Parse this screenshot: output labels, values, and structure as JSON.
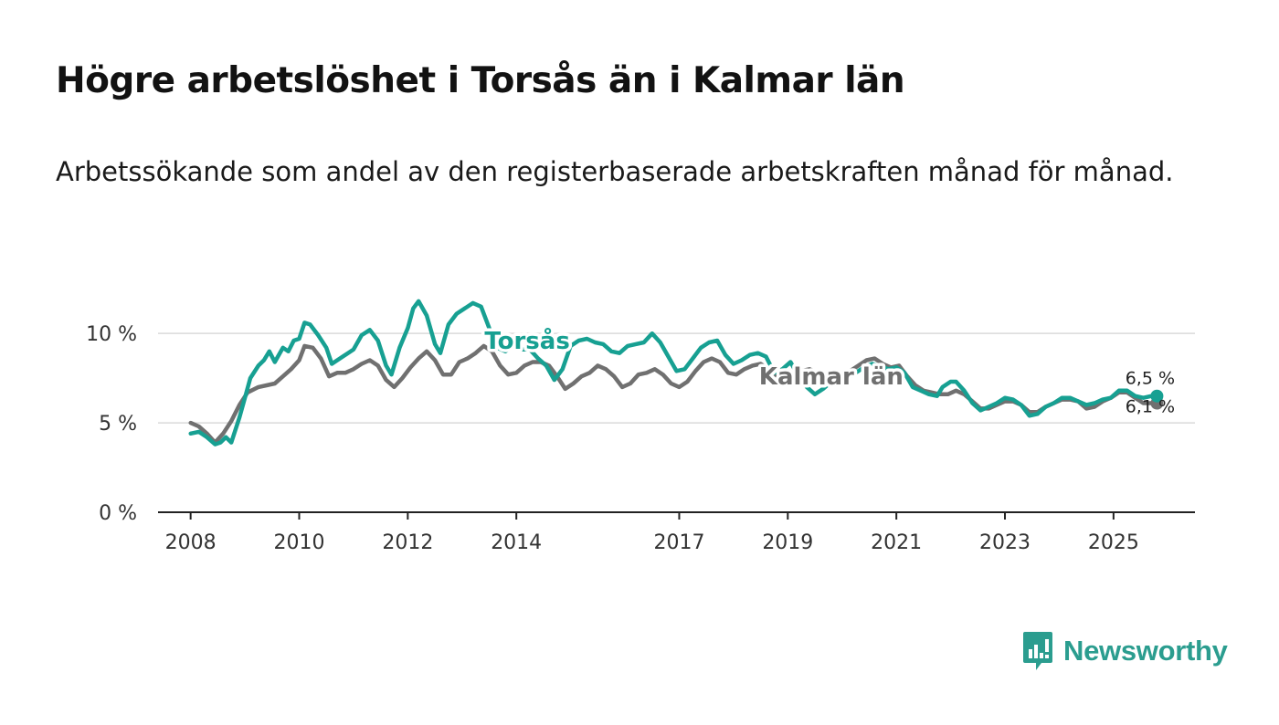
{
  "header": {
    "title": "Högre arbetslöshet i Torsås än i Kalmar län",
    "subtitle": "Arbetssökande som andel av den registerbaserade arbetskraften månad för månad."
  },
  "brand": {
    "name": "Newsworthy",
    "color": "#2b9d8f"
  },
  "chart_data": {
    "type": "line",
    "title": "Högre arbetslöshet i Torsås än i Kalmar län",
    "subtitle": "Arbetssökande som andel av den registerbaserade arbetskraften månad för månad.",
    "xlabel": "",
    "ylabel": "",
    "ylim": [
      0,
      12
    ],
    "xlim": [
      2007.4,
      2026.5
    ],
    "y_ticks": [
      {
        "value": 0,
        "label": "0 %"
      },
      {
        "value": 5,
        "label": "5 %"
      },
      {
        "value": 10,
        "label": "10 %"
      }
    ],
    "x_ticks": [
      {
        "value": 2008,
        "label": "2008"
      },
      {
        "value": 2010,
        "label": "2010"
      },
      {
        "value": 2012,
        "label": "2012"
      },
      {
        "value": 2014,
        "label": "2014"
      },
      {
        "value": 2017,
        "label": "2017"
      },
      {
        "value": 2019,
        "label": "2019"
      },
      {
        "value": 2021,
        "label": "2021"
      },
      {
        "value": 2023,
        "label": "2023"
      },
      {
        "value": 2025,
        "label": "2025"
      }
    ],
    "grid": "horizontal",
    "series": [
      {
        "name": "Kalmar län",
        "label": "Kalmar län",
        "color": "#707070",
        "end_label": "6,1 %",
        "points": [
          [
            2008.0,
            5.0
          ],
          [
            2008.15,
            4.8
          ],
          [
            2008.3,
            4.4
          ],
          [
            2008.45,
            3.9
          ],
          [
            2008.6,
            4.4
          ],
          [
            2008.75,
            5.1
          ],
          [
            2008.9,
            6.0
          ],
          [
            2009.05,
            6.7
          ],
          [
            2009.25,
            7.0
          ],
          [
            2009.4,
            7.1
          ],
          [
            2009.55,
            7.2
          ],
          [
            2009.7,
            7.6
          ],
          [
            2009.85,
            8.0
          ],
          [
            2010.0,
            8.5
          ],
          [
            2010.1,
            9.3
          ],
          [
            2010.25,
            9.2
          ],
          [
            2010.4,
            8.6
          ],
          [
            2010.55,
            7.6
          ],
          [
            2010.7,
            7.8
          ],
          [
            2010.85,
            7.8
          ],
          [
            2011.0,
            8.0
          ],
          [
            2011.15,
            8.3
          ],
          [
            2011.3,
            8.5
          ],
          [
            2011.45,
            8.2
          ],
          [
            2011.6,
            7.4
          ],
          [
            2011.75,
            7.0
          ],
          [
            2011.9,
            7.5
          ],
          [
            2012.05,
            8.1
          ],
          [
            2012.2,
            8.6
          ],
          [
            2012.35,
            9.0
          ],
          [
            2012.5,
            8.5
          ],
          [
            2012.65,
            7.7
          ],
          [
            2012.8,
            7.7
          ],
          [
            2012.95,
            8.4
          ],
          [
            2013.1,
            8.6
          ],
          [
            2013.25,
            8.9
          ],
          [
            2013.4,
            9.3
          ],
          [
            2013.55,
            9.0
          ],
          [
            2013.7,
            8.2
          ],
          [
            2013.85,
            7.7
          ],
          [
            2014.0,
            7.8
          ],
          [
            2014.15,
            8.2
          ],
          [
            2014.3,
            8.4
          ],
          [
            2014.45,
            8.4
          ],
          [
            2014.6,
            8.2
          ],
          [
            2014.75,
            7.6
          ],
          [
            2014.9,
            6.9
          ],
          [
            2015.05,
            7.2
          ],
          [
            2015.2,
            7.6
          ],
          [
            2015.35,
            7.8
          ],
          [
            2015.5,
            8.2
          ],
          [
            2015.65,
            8.0
          ],
          [
            2015.8,
            7.6
          ],
          [
            2015.95,
            7.0
          ],
          [
            2016.1,
            7.2
          ],
          [
            2016.25,
            7.7
          ],
          [
            2016.4,
            7.8
          ],
          [
            2016.55,
            8.0
          ],
          [
            2016.7,
            7.7
          ],
          [
            2016.85,
            7.2
          ],
          [
            2017.0,
            7.0
          ],
          [
            2017.15,
            7.3
          ],
          [
            2017.3,
            7.9
          ],
          [
            2017.45,
            8.4
          ],
          [
            2017.6,
            8.6
          ],
          [
            2017.75,
            8.4
          ],
          [
            2017.9,
            7.8
          ],
          [
            2018.05,
            7.7
          ],
          [
            2018.2,
            8.0
          ],
          [
            2018.35,
            8.2
          ],
          [
            2018.5,
            8.3
          ],
          [
            2018.65,
            8.0
          ],
          [
            2018.8,
            7.6
          ],
          [
            2018.95,
            7.4
          ],
          [
            2019.1,
            7.6
          ],
          [
            2019.25,
            7.9
          ],
          [
            2019.4,
            8.0
          ],
          [
            2019.55,
            7.8
          ],
          [
            2019.7,
            7.6
          ],
          [
            2019.85,
            7.5
          ],
          [
            2020.0,
            7.6
          ],
          [
            2020.15,
            7.9
          ],
          [
            2020.3,
            8.2
          ],
          [
            2020.45,
            8.5
          ],
          [
            2020.6,
            8.6
          ],
          [
            2020.75,
            8.3
          ],
          [
            2020.9,
            8.1
          ],
          [
            2021.05,
            8.2
          ],
          [
            2021.2,
            7.6
          ],
          [
            2021.35,
            7.1
          ],
          [
            2021.5,
            6.8
          ],
          [
            2021.65,
            6.7
          ],
          [
            2021.8,
            6.6
          ],
          [
            2021.95,
            6.6
          ],
          [
            2022.1,
            6.8
          ],
          [
            2022.25,
            6.6
          ],
          [
            2022.4,
            6.2
          ],
          [
            2022.55,
            5.8
          ],
          [
            2022.7,
            5.8
          ],
          [
            2022.85,
            6.0
          ],
          [
            2023.0,
            6.2
          ],
          [
            2023.15,
            6.2
          ],
          [
            2023.3,
            6.0
          ],
          [
            2023.45,
            5.6
          ],
          [
            2023.6,
            5.6
          ],
          [
            2023.75,
            5.9
          ],
          [
            2023.9,
            6.1
          ],
          [
            2024.05,
            6.3
          ],
          [
            2024.2,
            6.3
          ],
          [
            2024.35,
            6.2
          ],
          [
            2024.5,
            5.8
          ],
          [
            2024.65,
            5.9
          ],
          [
            2024.8,
            6.2
          ],
          [
            2024.95,
            6.4
          ],
          [
            2025.1,
            6.7
          ],
          [
            2025.25,
            6.7
          ],
          [
            2025.4,
            6.4
          ],
          [
            2025.55,
            6.1
          ],
          [
            2025.7,
            6.1
          ],
          [
            2025.8,
            6.1
          ]
        ]
      },
      {
        "name": "Torsås",
        "label": "Torsås",
        "color": "#17a092",
        "end_label": "6,5 %",
        "points": [
          [
            2008.0,
            4.4
          ],
          [
            2008.15,
            4.5
          ],
          [
            2008.3,
            4.2
          ],
          [
            2008.45,
            3.8
          ],
          [
            2008.55,
            3.9
          ],
          [
            2008.65,
            4.2
          ],
          [
            2008.75,
            3.9
          ],
          [
            2008.9,
            5.3
          ],
          [
            2009.0,
            6.4
          ],
          [
            2009.1,
            7.5
          ],
          [
            2009.25,
            8.2
          ],
          [
            2009.35,
            8.5
          ],
          [
            2009.45,
            9.0
          ],
          [
            2009.55,
            8.4
          ],
          [
            2009.7,
            9.2
          ],
          [
            2009.8,
            9.0
          ],
          [
            2009.9,
            9.6
          ],
          [
            2010.0,
            9.7
          ],
          [
            2010.1,
            10.6
          ],
          [
            2010.2,
            10.5
          ],
          [
            2010.35,
            9.9
          ],
          [
            2010.5,
            9.2
          ],
          [
            2010.6,
            8.3
          ],
          [
            2010.8,
            8.7
          ],
          [
            2011.0,
            9.1
          ],
          [
            2011.15,
            9.9
          ],
          [
            2011.3,
            10.2
          ],
          [
            2011.45,
            9.6
          ],
          [
            2011.6,
            8.2
          ],
          [
            2011.7,
            7.7
          ],
          [
            2011.85,
            9.2
          ],
          [
            2012.0,
            10.3
          ],
          [
            2012.1,
            11.4
          ],
          [
            2012.2,
            11.8
          ],
          [
            2012.35,
            11.0
          ],
          [
            2012.5,
            9.4
          ],
          [
            2012.6,
            8.9
          ],
          [
            2012.75,
            10.5
          ],
          [
            2012.9,
            11.1
          ],
          [
            2013.05,
            11.4
          ],
          [
            2013.2,
            11.7
          ],
          [
            2013.35,
            11.5
          ],
          [
            2013.5,
            10.3
          ],
          [
            2013.65,
            9.2
          ],
          [
            2013.8,
            9.0
          ],
          [
            2013.95,
            9.3
          ],
          [
            2014.1,
            9.1
          ],
          [
            2014.25,
            9.1
          ],
          [
            2014.4,
            8.6
          ],
          [
            2014.55,
            8.2
          ],
          [
            2014.7,
            7.4
          ],
          [
            2014.85,
            8.0
          ],
          [
            2015.0,
            9.3
          ],
          [
            2015.15,
            9.6
          ],
          [
            2015.3,
            9.7
          ],
          [
            2015.45,
            9.5
          ],
          [
            2015.6,
            9.4
          ],
          [
            2015.75,
            9.0
          ],
          [
            2015.9,
            8.9
          ],
          [
            2016.05,
            9.3
          ],
          [
            2016.2,
            9.4
          ],
          [
            2016.35,
            9.5
          ],
          [
            2016.5,
            10.0
          ],
          [
            2016.65,
            9.5
          ],
          [
            2016.8,
            8.7
          ],
          [
            2016.95,
            7.9
          ],
          [
            2017.1,
            8.0
          ],
          [
            2017.25,
            8.6
          ],
          [
            2017.4,
            9.2
          ],
          [
            2017.55,
            9.5
          ],
          [
            2017.7,
            9.6
          ],
          [
            2017.85,
            8.8
          ],
          [
            2018.0,
            8.3
          ],
          [
            2018.15,
            8.5
          ],
          [
            2018.3,
            8.8
          ],
          [
            2018.45,
            8.9
          ],
          [
            2018.6,
            8.7
          ],
          [
            2018.75,
            7.8
          ],
          [
            2018.9,
            8.0
          ],
          [
            2019.05,
            8.4
          ],
          [
            2019.2,
            7.6
          ],
          [
            2019.35,
            7.0
          ],
          [
            2019.5,
            6.6
          ],
          [
            2019.65,
            6.9
          ],
          [
            2019.8,
            7.3
          ],
          [
            2019.95,
            7.5
          ],
          [
            2020.1,
            7.5
          ],
          [
            2020.25,
            7.8
          ],
          [
            2020.4,
            8.1
          ],
          [
            2020.55,
            8.3
          ],
          [
            2020.7,
            8.2
          ],
          [
            2020.85,
            8.0
          ],
          [
            2021.0,
            8.1
          ],
          [
            2021.15,
            7.8
          ],
          [
            2021.3,
            7.0
          ],
          [
            2021.45,
            6.8
          ],
          [
            2021.6,
            6.6
          ],
          [
            2021.75,
            6.5
          ],
          [
            2021.85,
            7.0
          ],
          [
            2022.0,
            7.3
          ],
          [
            2022.1,
            7.3
          ],
          [
            2022.25,
            6.8
          ],
          [
            2022.4,
            6.1
          ],
          [
            2022.55,
            5.7
          ],
          [
            2022.7,
            5.9
          ],
          [
            2022.85,
            6.1
          ],
          [
            2023.0,
            6.4
          ],
          [
            2023.15,
            6.3
          ],
          [
            2023.3,
            6.0
          ],
          [
            2023.45,
            5.4
          ],
          [
            2023.6,
            5.5
          ],
          [
            2023.75,
            5.9
          ],
          [
            2023.9,
            6.1
          ],
          [
            2024.05,
            6.4
          ],
          [
            2024.2,
            6.4
          ],
          [
            2024.35,
            6.2
          ],
          [
            2024.5,
            6.0
          ],
          [
            2024.65,
            6.1
          ],
          [
            2024.8,
            6.3
          ],
          [
            2024.95,
            6.4
          ],
          [
            2025.1,
            6.8
          ],
          [
            2025.25,
            6.8
          ],
          [
            2025.4,
            6.5
          ],
          [
            2025.55,
            6.4
          ],
          [
            2025.7,
            6.5
          ],
          [
            2025.8,
            6.5
          ]
        ]
      }
    ]
  }
}
